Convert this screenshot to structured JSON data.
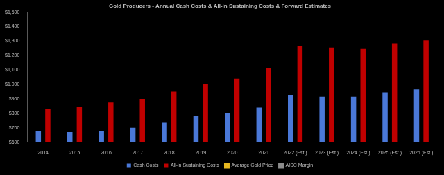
{
  "chart_data": {
    "type": "bar",
    "title": "Gold Producers - Annual Cash Costs & All-in Sustaining Costs & Forward Estimates",
    "categories": [
      "2014",
      "2015",
      "2016",
      "2017",
      "2018",
      "2019",
      "2020",
      "2021",
      "2022 (Est.)",
      "2023 (Est.)",
      "2024 (Est.)",
      "2025 (Est.)",
      "2026 (Est.)"
    ],
    "series": [
      {
        "name": "Cash Costs",
        "color": "#4a78d8",
        "values": [
          680,
          670,
          675,
          700,
          735,
          780,
          800,
          840,
          925,
          915,
          915,
          945,
          965
        ]
      },
      {
        "name": "All-in Sustaining Costs",
        "color": "#c00000",
        "values": [
          830,
          845,
          875,
          900,
          950,
          1005,
          1040,
          1115,
          1265,
          1255,
          1245,
          1285,
          1305
        ]
      },
      {
        "name": "Average Gold Price",
        "color": "#e8b820",
        "type": "line",
        "values": [
          null,
          null,
          null,
          null,
          null,
          null,
          null,
          null,
          null,
          null,
          null,
          null,
          null
        ]
      },
      {
        "name": "AISC Margin",
        "color": "#8c8c8c",
        "type": "line",
        "values": [
          null,
          null,
          null,
          null,
          null,
          null,
          null,
          null,
          null,
          null,
          null,
          null,
          null
        ]
      }
    ],
    "ylim": [
      600,
      1500
    ],
    "yticks": [
      {
        "value": 600,
        "label": "$600"
      },
      {
        "value": 700,
        "label": "$700"
      },
      {
        "value": 800,
        "label": "$800"
      },
      {
        "value": 900,
        "label": "$900"
      },
      {
        "value": 1000,
        "label": "$1,000"
      },
      {
        "value": 1100,
        "label": "$1,100"
      },
      {
        "value": 1200,
        "label": "$1,200"
      },
      {
        "value": 1300,
        "label": "$1,300"
      },
      {
        "value": 1400,
        "label": "$1,400"
      },
      {
        "value": 1500,
        "label": "$1,500"
      }
    ],
    "grid": false,
    "legend": "bottom"
  }
}
